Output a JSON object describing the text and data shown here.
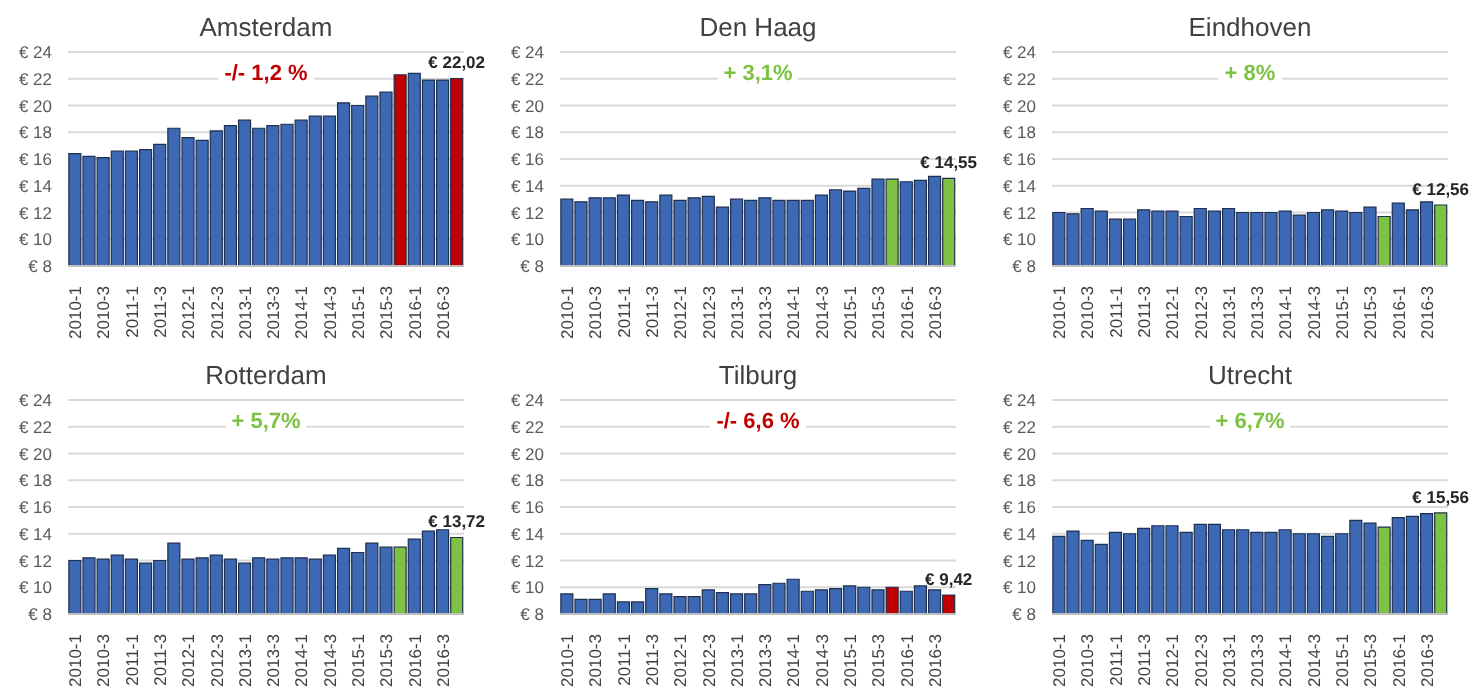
{
  "chart_data": [
    {
      "type": "bar",
      "title": "Amsterdam",
      "annotations": [
        "-/- 1,2 %"
      ],
      "categories": [
        "2010-1",
        null,
        "2010-3",
        null,
        "2011-1",
        null,
        "2011-3",
        null,
        "2012-1",
        null,
        "2012-3",
        null,
        "2013-1",
        null,
        "2013-3",
        null,
        "2014-1",
        null,
        "2014-3",
        null,
        "2015-1",
        null,
        "2015-3",
        null,
        "2016-1",
        null,
        "2016-3",
        null
      ],
      "values": [
        16.4,
        16.2,
        16.1,
        16.6,
        16.6,
        16.7,
        17.1,
        18.3,
        17.6,
        17.4,
        18.1,
        18.5,
        18.9,
        18.3,
        18.5,
        18.6,
        18.9,
        19.2,
        19.2,
        20.2,
        20.0,
        20.7,
        21.0,
        22.3,
        22.4,
        21.9,
        21.9,
        22.02
      ],
      "colors": [
        "#3c68b4",
        "#3c68b4",
        "#3c68b4",
        "#3c68b4",
        "#3c68b4",
        "#3c68b4",
        "#3c68b4",
        "#3c68b4",
        "#3c68b4",
        "#3c68b4",
        "#3c68b4",
        "#3c68b4",
        "#3c68b4",
        "#3c68b4",
        "#3c68b4",
        "#3c68b4",
        "#3c68b4",
        "#3c68b4",
        "#3c68b4",
        "#3c68b4",
        "#3c68b4",
        "#3c68b4",
        "#3c68b4",
        "#c00000",
        "#3c68b4",
        "#3c68b4",
        "#3c68b4",
        "#c00000"
      ],
      "value_labels": [
        null,
        null,
        null,
        null,
        null,
        null,
        null,
        null,
        null,
        null,
        null,
        null,
        null,
        null,
        null,
        null,
        null,
        null,
        null,
        null,
        null,
        null,
        null,
        null,
        null,
        null,
        null,
        "€ 22,02"
      ],
      "ylim": [
        8,
        24
      ],
      "yticks": [
        {
          "value": 8,
          "label": "€ 8"
        },
        {
          "value": 10,
          "label": "€ 10"
        },
        {
          "value": 12,
          "label": "€ 12"
        },
        {
          "value": 14,
          "label": "€ 14"
        },
        {
          "value": 16,
          "label": "€ 16"
        },
        {
          "value": 18,
          "label": "€ 18"
        },
        {
          "value": 20,
          "label": "€ 20"
        },
        {
          "value": 22,
          "label": "€ 22"
        },
        {
          "value": 24,
          "label": "€ 24"
        }
      ],
      "grid": "y"
    },
    {
      "type": "bar",
      "title": "Den Haag",
      "annotations": [
        "+ 3,1%"
      ],
      "categories": [
        "2010-1",
        null,
        "2010-3",
        null,
        "2011-1",
        null,
        "2011-3",
        null,
        "2012-1",
        null,
        "2012-3",
        null,
        "2013-1",
        null,
        "2013-3",
        null,
        "2014-1",
        null,
        "2014-3",
        null,
        "2015-1",
        null,
        "2015-3",
        null,
        "2016-1",
        null,
        "2016-3",
        null
      ],
      "values": [
        13.0,
        12.8,
        13.1,
        13.1,
        13.3,
        12.9,
        12.8,
        13.3,
        12.9,
        13.1,
        13.2,
        12.4,
        13.0,
        12.9,
        13.1,
        12.9,
        12.9,
        12.9,
        13.3,
        13.7,
        13.6,
        13.8,
        14.5,
        14.5,
        14.3,
        14.4,
        14.7,
        14.55
      ],
      "colors": [
        "#3c68b4",
        "#3c68b4",
        "#3c68b4",
        "#3c68b4",
        "#3c68b4",
        "#3c68b4",
        "#3c68b4",
        "#3c68b4",
        "#3c68b4",
        "#3c68b4",
        "#3c68b4",
        "#3c68b4",
        "#3c68b4",
        "#3c68b4",
        "#3c68b4",
        "#3c68b4",
        "#3c68b4",
        "#3c68b4",
        "#3c68b4",
        "#3c68b4",
        "#3c68b4",
        "#3c68b4",
        "#3c68b4",
        "#7dc242",
        "#3c68b4",
        "#3c68b4",
        "#3c68b4",
        "#7dc242"
      ],
      "value_labels": [
        null,
        null,
        null,
        null,
        null,
        null,
        null,
        null,
        null,
        null,
        null,
        null,
        null,
        null,
        null,
        null,
        null,
        null,
        null,
        null,
        null,
        null,
        null,
        null,
        null,
        null,
        null,
        "€ 14,55"
      ],
      "ylim": [
        8,
        24
      ],
      "yticks": [
        {
          "value": 8,
          "label": "€ 8"
        },
        {
          "value": 10,
          "label": "€ 10"
        },
        {
          "value": 12,
          "label": "€ 12"
        },
        {
          "value": 14,
          "label": "€ 14"
        },
        {
          "value": 16,
          "label": "€ 16"
        },
        {
          "value": 18,
          "label": "€ 18"
        },
        {
          "value": 20,
          "label": "€ 20"
        },
        {
          "value": 22,
          "label": "€ 22"
        },
        {
          "value": 24,
          "label": "€ 24"
        }
      ],
      "grid": "y"
    },
    {
      "type": "bar",
      "title": "Eindhoven",
      "annotations": [
        "+ 8%"
      ],
      "categories": [
        "2010-1",
        null,
        "2010-3",
        null,
        "2011-1",
        null,
        "2011-3",
        null,
        "2012-1",
        null,
        "2012-3",
        null,
        "2013-1",
        null,
        "2013-3",
        null,
        "2014-1",
        null,
        "2014-3",
        null,
        "2015-1",
        null,
        "2015-3",
        null,
        "2016-1",
        null,
        "2016-3",
        null
      ],
      "values": [
        12.0,
        11.9,
        12.3,
        12.1,
        11.5,
        11.5,
        12.2,
        12.1,
        12.1,
        11.7,
        12.3,
        12.1,
        12.3,
        12.0,
        12.0,
        12.0,
        12.1,
        11.8,
        12.0,
        12.2,
        12.1,
        12.0,
        12.4,
        11.7,
        12.7,
        12.2,
        12.8,
        12.56
      ],
      "colors": [
        "#3c68b4",
        "#3c68b4",
        "#3c68b4",
        "#3c68b4",
        "#3c68b4",
        "#3c68b4",
        "#3c68b4",
        "#3c68b4",
        "#3c68b4",
        "#3c68b4",
        "#3c68b4",
        "#3c68b4",
        "#3c68b4",
        "#3c68b4",
        "#3c68b4",
        "#3c68b4",
        "#3c68b4",
        "#3c68b4",
        "#3c68b4",
        "#3c68b4",
        "#3c68b4",
        "#3c68b4",
        "#3c68b4",
        "#7dc242",
        "#3c68b4",
        "#3c68b4",
        "#3c68b4",
        "#7dc242"
      ],
      "value_labels": [
        null,
        null,
        null,
        null,
        null,
        null,
        null,
        null,
        null,
        null,
        null,
        null,
        null,
        null,
        null,
        null,
        null,
        null,
        null,
        null,
        null,
        null,
        null,
        null,
        null,
        null,
        null,
        "€ 12,56"
      ],
      "ylim": [
        8,
        24
      ],
      "yticks": [
        {
          "value": 8,
          "label": "€ 8"
        },
        {
          "value": 10,
          "label": "€ 10"
        },
        {
          "value": 12,
          "label": "€ 12"
        },
        {
          "value": 14,
          "label": "€ 14"
        },
        {
          "value": 16,
          "label": "€ 16"
        },
        {
          "value": 18,
          "label": "€ 18"
        },
        {
          "value": 20,
          "label": "€ 20"
        },
        {
          "value": 22,
          "label": "€ 22"
        },
        {
          "value": 24,
          "label": "€ 24"
        }
      ],
      "grid": "y"
    },
    {
      "type": "bar",
      "title": "Rotterdam",
      "annotations": [
        "+ 5,7%"
      ],
      "categories": [
        "2010-1",
        null,
        "2010-3",
        null,
        "2011-1",
        null,
        "2011-3",
        null,
        "2012-1",
        null,
        "2012-3",
        null,
        "2013-1",
        null,
        "2013-3",
        null,
        "2014-1",
        null,
        "2014-3",
        null,
        "2015-1",
        null,
        "2015-3",
        null,
        "2016-1",
        null,
        "2016-3",
        null
      ],
      "values": [
        12.0,
        12.2,
        12.1,
        12.4,
        12.1,
        11.8,
        12.0,
        13.3,
        12.1,
        12.2,
        12.4,
        12.1,
        11.8,
        12.2,
        12.1,
        12.2,
        12.2,
        12.1,
        12.4,
        12.9,
        12.6,
        13.3,
        13.0,
        13.0,
        13.6,
        14.2,
        14.3,
        13.72
      ],
      "colors": [
        "#3c68b4",
        "#3c68b4",
        "#3c68b4",
        "#3c68b4",
        "#3c68b4",
        "#3c68b4",
        "#3c68b4",
        "#3c68b4",
        "#3c68b4",
        "#3c68b4",
        "#3c68b4",
        "#3c68b4",
        "#3c68b4",
        "#3c68b4",
        "#3c68b4",
        "#3c68b4",
        "#3c68b4",
        "#3c68b4",
        "#3c68b4",
        "#3c68b4",
        "#3c68b4",
        "#3c68b4",
        "#3c68b4",
        "#7dc242",
        "#3c68b4",
        "#3c68b4",
        "#3c68b4",
        "#7dc242"
      ],
      "value_labels": [
        null,
        null,
        null,
        null,
        null,
        null,
        null,
        null,
        null,
        null,
        null,
        null,
        null,
        null,
        null,
        null,
        null,
        null,
        null,
        null,
        null,
        null,
        null,
        null,
        null,
        null,
        null,
        "€ 13,72"
      ],
      "ylim": [
        8,
        24
      ],
      "yticks": [
        {
          "value": 8,
          "label": "€ 8"
        },
        {
          "value": 10,
          "label": "€ 10"
        },
        {
          "value": 12,
          "label": "€ 12"
        },
        {
          "value": 14,
          "label": "€ 14"
        },
        {
          "value": 16,
          "label": "€ 16"
        },
        {
          "value": 18,
          "label": "€ 18"
        },
        {
          "value": 20,
          "label": "€ 20"
        },
        {
          "value": 22,
          "label": "€ 22"
        },
        {
          "value": 24,
          "label": "€ 24"
        }
      ],
      "grid": "y"
    },
    {
      "type": "bar",
      "title": "Tilburg",
      "annotations": [
        "-/- 6,6 %"
      ],
      "categories": [
        "2010-1",
        null,
        "2010-3",
        null,
        "2011-1",
        null,
        "2011-3",
        null,
        "2012-1",
        null,
        "2012-3",
        null,
        "2013-1",
        null,
        "2013-3",
        null,
        "2014-1",
        null,
        "2014-3",
        null,
        "2015-1",
        null,
        "2015-3",
        null,
        "2016-1",
        null,
        "2016-3",
        null
      ],
      "values": [
        9.5,
        9.1,
        9.1,
        9.5,
        8.9,
        8.9,
        9.9,
        9.5,
        9.3,
        9.3,
        9.8,
        9.6,
        9.5,
        9.5,
        10.2,
        10.3,
        10.6,
        9.7,
        9.8,
        9.9,
        10.1,
        10.0,
        9.8,
        10.0,
        9.7,
        10.1,
        9.8,
        9.42
      ],
      "colors": [
        "#3c68b4",
        "#3c68b4",
        "#3c68b4",
        "#3c68b4",
        "#3c68b4",
        "#3c68b4",
        "#3c68b4",
        "#3c68b4",
        "#3c68b4",
        "#3c68b4",
        "#3c68b4",
        "#3c68b4",
        "#3c68b4",
        "#3c68b4",
        "#3c68b4",
        "#3c68b4",
        "#3c68b4",
        "#3c68b4",
        "#3c68b4",
        "#3c68b4",
        "#3c68b4",
        "#3c68b4",
        "#3c68b4",
        "#c00000",
        "#3c68b4",
        "#3c68b4",
        "#3c68b4",
        "#c00000"
      ],
      "value_labels": [
        null,
        null,
        null,
        null,
        null,
        null,
        null,
        null,
        null,
        null,
        null,
        null,
        null,
        null,
        null,
        null,
        null,
        null,
        null,
        null,
        null,
        null,
        null,
        null,
        null,
        null,
        null,
        "€ 9,42"
      ],
      "ylim": [
        8,
        24
      ],
      "yticks": [
        {
          "value": 8,
          "label": "€ 8"
        },
        {
          "value": 10,
          "label": "€ 10"
        },
        {
          "value": 12,
          "label": "€ 12"
        },
        {
          "value": 14,
          "label": "€ 14"
        },
        {
          "value": 16,
          "label": "€ 16"
        },
        {
          "value": 18,
          "label": "€ 18"
        },
        {
          "value": 20,
          "label": "€ 20"
        },
        {
          "value": 22,
          "label": "€ 22"
        },
        {
          "value": 24,
          "label": "€ 24"
        }
      ],
      "grid": "y"
    },
    {
      "type": "bar",
      "title": "Utrecht",
      "annotations": [
        "+ 6,7%"
      ],
      "categories": [
        "2010-1",
        null,
        "2010-3",
        null,
        "2011-1",
        null,
        "2011-3",
        null,
        "2012-1",
        null,
        "2012-3",
        null,
        "2013-1",
        null,
        "2013-3",
        null,
        "2014-1",
        null,
        "2014-3",
        null,
        "2015-1",
        null,
        "2015-3",
        null,
        "2016-1",
        null,
        "2016-3",
        null
      ],
      "values": [
        13.8,
        14.2,
        13.5,
        13.2,
        14.1,
        14.0,
        14.4,
        14.6,
        14.6,
        14.1,
        14.7,
        14.7,
        14.3,
        14.3,
        14.1,
        14.1,
        14.3,
        14.0,
        14.0,
        13.8,
        14.0,
        15.0,
        14.8,
        14.5,
        15.2,
        15.3,
        15.5,
        15.56
      ],
      "colors": [
        "#3c68b4",
        "#3c68b4",
        "#3c68b4",
        "#3c68b4",
        "#3c68b4",
        "#3c68b4",
        "#3c68b4",
        "#3c68b4",
        "#3c68b4",
        "#3c68b4",
        "#3c68b4",
        "#3c68b4",
        "#3c68b4",
        "#3c68b4",
        "#3c68b4",
        "#3c68b4",
        "#3c68b4",
        "#3c68b4",
        "#3c68b4",
        "#3c68b4",
        "#3c68b4",
        "#3c68b4",
        "#3c68b4",
        "#7dc242",
        "#3c68b4",
        "#3c68b4",
        "#3c68b4",
        "#7dc242"
      ],
      "value_labels": [
        null,
        null,
        null,
        null,
        null,
        null,
        null,
        null,
        null,
        null,
        null,
        null,
        null,
        null,
        null,
        null,
        null,
        null,
        null,
        null,
        null,
        null,
        null,
        null,
        null,
        null,
        null,
        "€ 15,56"
      ],
      "ylim": [
        8,
        24
      ],
      "yticks": [
        {
          "value": 8,
          "label": "€ 8"
        },
        {
          "value": 10,
          "label": "€ 10"
        },
        {
          "value": 12,
          "label": "€ 12"
        },
        {
          "value": 14,
          "label": "€ 14"
        },
        {
          "value": 16,
          "label": "€ 16"
        },
        {
          "value": 18,
          "label": "€ 18"
        },
        {
          "value": 20,
          "label": "€ 20"
        },
        {
          "value": 22,
          "label": "€ 22"
        },
        {
          "value": 24,
          "label": "€ 24"
        }
      ],
      "grid": "y"
    }
  ]
}
